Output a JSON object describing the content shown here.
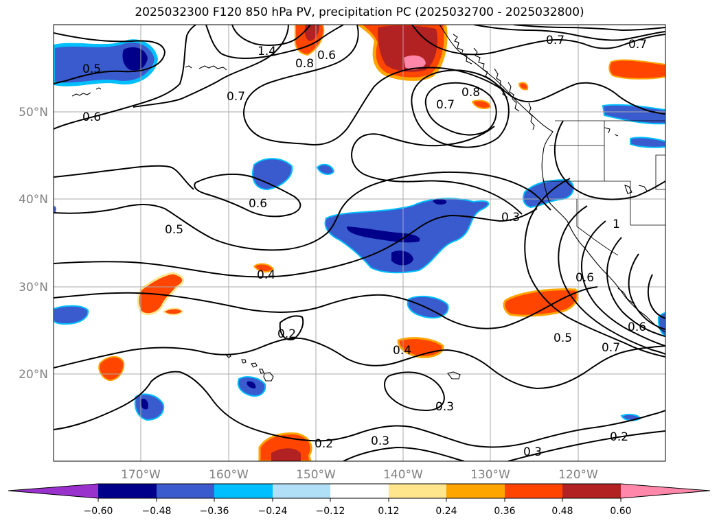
{
  "title": "2025032300 F120 850 hPa PV, precipitation PC (2025032700 - 2025032800)",
  "axes": {
    "lat_ticks": [
      "50°N",
      "40°N",
      "30°N",
      "20°N"
    ],
    "lon_ticks": [
      "170°W",
      "160°W",
      "150°W",
      "140°W",
      "130°W",
      "120°W"
    ]
  },
  "contour_labels": [
    "0.5",
    "0.6",
    "1.4",
    "0.8",
    "0.6",
    "0.8",
    "0.7",
    "0.7",
    "0.7",
    "0.7",
    "0.6",
    "0.5",
    "0.4",
    "0.3",
    "0.2",
    "0.4",
    "0.3",
    "0.3",
    "0.2",
    "0.3",
    "0.2",
    "0.6",
    "0.5",
    "0.7",
    "0.6",
    "1"
  ],
  "colorbar": {
    "ticks": [
      "−0.60",
      "−0.48",
      "−0.36",
      "−0.24",
      "−0.12",
      "0.12",
      "0.24",
      "0.36",
      "0.48",
      "0.60"
    ],
    "colors": [
      "#9932cc",
      "#00008b",
      "#3a5bcd",
      "#00bfff",
      "#b0e0f8",
      "#ffffff",
      "#ffe68c",
      "#ffa500",
      "#ff4500",
      "#b22222",
      "#ff88aa"
    ]
  }
}
